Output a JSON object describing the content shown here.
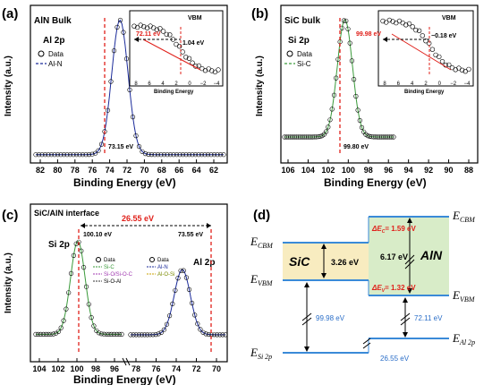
{
  "colors": {
    "spec_line": "#1a2a9a",
    "dash_red": "#e0201a",
    "green": "#3a9a3a",
    "blue_lbl": "#2a6ec8",
    "sic_fill": "#f8ecc0",
    "aln_fill": "#d8ecc8",
    "level": "#3a8ad8"
  },
  "panels": {
    "a": {
      "tag": "(a)",
      "title": "AlN Bulk",
      "core": "Al 2p",
      "legend": [
        "Data",
        "Al-N"
      ],
      "peak_label": "73.15 eV",
      "ylabel": "Intensity (a.u.)",
      "xlabel": "Binding Energy (eV)",
      "xticks": [
        "82",
        "80",
        "78",
        "76",
        "74",
        "72",
        "70",
        "68",
        "66",
        "64",
        "62"
      ],
      "inset": {
        "title": "VBM",
        "value": "1.04 eV",
        "sep": "72.11 eV",
        "xlabel": "Binding Energy",
        "xticks": [
          "8",
          "6",
          "4",
          "2",
          "0",
          "−2",
          "−4"
        ]
      }
    },
    "b": {
      "tag": "(b)",
      "title": "SiC bulk",
      "core": "Si 2p",
      "legend": [
        "Data",
        "Si-C"
      ],
      "peak_label": "99.80 eV",
      "ylabel": "Intensity (a.u.)",
      "xlabel": "Binding Energy (eV)",
      "xticks": [
        "106",
        "104",
        "102",
        "100",
        "98",
        "96",
        "94",
        "92",
        "90",
        "88"
      ],
      "inset": {
        "title": "VBM",
        "value": "−0.18 eV",
        "sep": "99.98 eV",
        "xlabel": "Binding Energy",
        "xticks": [
          "8",
          "6",
          "4",
          "2",
          "0",
          "−2",
          "−4"
        ]
      }
    },
    "c": {
      "tag": "(c)",
      "title": "SiC/AlN interface",
      "delta": "26.55 eV",
      "peak_si": "100.10 eV",
      "peak_al": "73.55 eV",
      "core_si": "Si 2p",
      "core_al": "Al 2p",
      "legend_left": [
        "Data",
        "Si-C",
        "Si-O/Si-O-C",
        "Si-O-Al"
      ],
      "legend_right": [
        "Data",
        "Al-N",
        "Al-O-Si"
      ],
      "ylabel": "Intensity (a.u.)",
      "xlabel": "Binding Energy (eV)",
      "xticks_left": [
        "104",
        "102",
        "100",
        "98",
        "96"
      ],
      "xticks_right": [
        "78",
        "76",
        "74",
        "72",
        "70"
      ]
    },
    "d": {
      "tag": "(d)",
      "e_cbm": "E",
      "e_cbm_sub": "CBM",
      "e_vbm": "E",
      "e_vbm_sub": "VBM",
      "e_si": "E",
      "e_si_sub": "Si 2p",
      "e_al": "E",
      "e_al_sub": "Al 2p",
      "sic": "SiC",
      "aln": "AlN",
      "sic_gap": "3.26 eV",
      "aln_gap": "6.17 eV",
      "dec": "ΔE",
      "dec_sub": "C",
      "dec_val": "= 1.59 eV",
      "dev": "ΔE",
      "dev_sub": "V",
      "dev_val": "= 1.32 eV",
      "si_sep": "99.98 eV",
      "al_sep": "72.11 eV",
      "delta": "26.55 eV"
    }
  },
  "chart_data": [
    {
      "type": "line",
      "panel": "a",
      "title": "AlN Bulk",
      "xlabel": "Binding Energy (eV)",
      "ylabel": "Intensity (a.u.)",
      "xlim": [
        83,
        61
      ],
      "series": [
        {
          "name": "Data"
        },
        {
          "name": "Al-N"
        }
      ],
      "peak_x": 73.15
    },
    {
      "type": "line",
      "panel": "b",
      "title": "SiC bulk",
      "xlabel": "Binding Energy (eV)",
      "ylabel": "Intensity (a.u.)",
      "xlim": [
        107,
        87
      ],
      "series": [
        {
          "name": "Data"
        },
        {
          "name": "Si-C"
        }
      ],
      "peak_x": 99.8
    },
    {
      "type": "line",
      "panel": "c",
      "title": "SiC/AlN interface",
      "xlabel": "Binding Energy (eV)",
      "ylabel": "Intensity (a.u.)",
      "peaks_x": [
        100.1,
        73.55
      ]
    }
  ]
}
